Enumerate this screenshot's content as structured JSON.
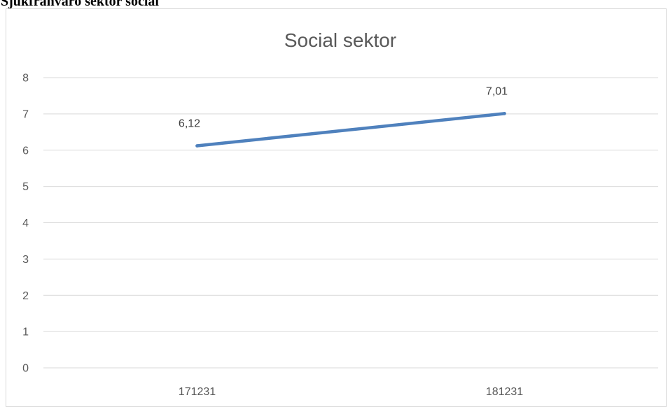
{
  "document": {
    "heading": "Sjukfrånvaro sektor social"
  },
  "chart_data": {
    "type": "line",
    "title": "Social sektor",
    "xlabel": "",
    "ylabel": "",
    "categories": [
      "171231",
      "181231"
    ],
    "series": [
      {
        "values": [
          6.12,
          7.01
        ],
        "labels": [
          "6,12",
          "7,01"
        ],
        "color": "#4f81bd"
      }
    ],
    "ylim": [
      0,
      8
    ],
    "yticks": [
      0,
      1,
      2,
      3,
      4,
      5,
      6,
      7,
      8
    ],
    "grid": true,
    "legend": "none"
  }
}
